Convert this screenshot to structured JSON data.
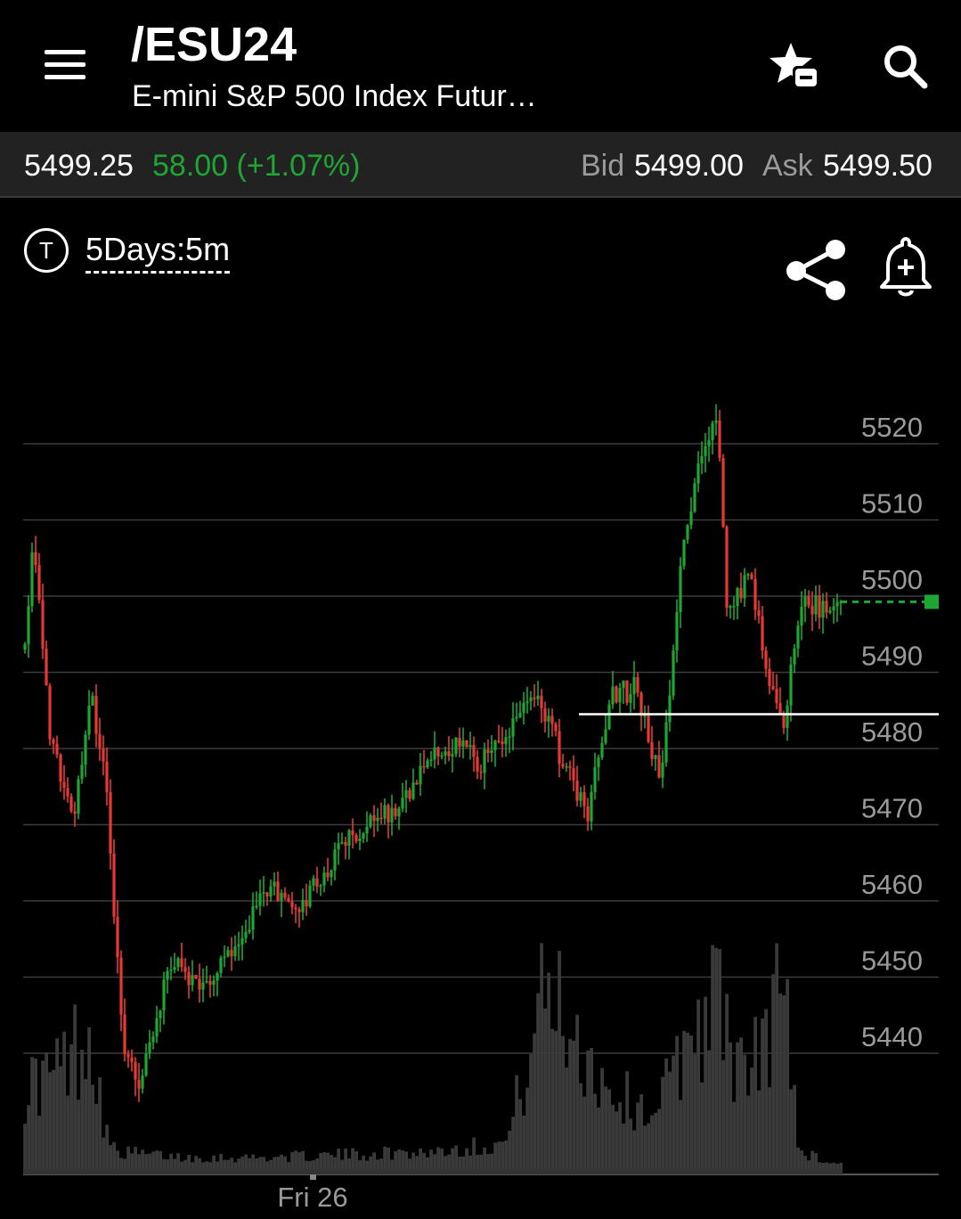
{
  "header": {
    "symbol": "/ESU24",
    "name": "E-mini S&P 500 Index Futur…",
    "icons": [
      "menu-icon",
      "watchlist-star-minus-icon",
      "search-icon"
    ]
  },
  "quote": {
    "last": "5499.25",
    "change": "58.00 (+1.07%)",
    "bid_label": "Bid",
    "bid": "5499.00",
    "ask_label": "Ask",
    "ask": "5499.50",
    "change_color": "#1fa533"
  },
  "chart_controls": {
    "timeframe_icon": "T",
    "timeframe": "5Days:5m",
    "icons": [
      "share-icon",
      "add-alert-bell-icon"
    ]
  },
  "chart_data": {
    "type": "candlestick",
    "price_ticks": [
      "5520",
      "5510",
      "5500",
      "5490",
      "5480",
      "5470",
      "5460",
      "5450",
      "5440"
    ],
    "x_label": "Fri 26",
    "ylim": [
      5434,
      5528
    ],
    "last_price": 5499.25,
    "reference_line": 5484.5,
    "up_color": "#1fa533",
    "down_color": "#e53935",
    "price_path": [
      [
        0,
        5493
      ],
      [
        1,
        5507
      ],
      [
        3,
        5483
      ],
      [
        6,
        5470
      ],
      [
        8,
        5488
      ],
      [
        10,
        5475
      ],
      [
        12,
        5440
      ],
      [
        14,
        5436
      ],
      [
        18,
        5452
      ],
      [
        22,
        5448
      ],
      [
        26,
        5455
      ],
      [
        30,
        5462
      ],
      [
        34,
        5459
      ],
      [
        38,
        5466
      ],
      [
        42,
        5470
      ],
      [
        46,
        5472
      ],
      [
        50,
        5479
      ],
      [
        53,
        5481
      ],
      [
        56,
        5478
      ],
      [
        60,
        5483
      ],
      [
        63,
        5487
      ],
      [
        66,
        5478
      ],
      [
        69,
        5472
      ],
      [
        72,
        5487
      ],
      [
        75,
        5488
      ],
      [
        78,
        5475
      ],
      [
        81,
        5510
      ],
      [
        83,
        5518
      ],
      [
        85,
        5523
      ],
      [
        86,
        5497
      ],
      [
        89,
        5503
      ],
      [
        91,
        5490
      ],
      [
        93,
        5483
      ],
      [
        95,
        5499
      ],
      [
        100,
        5498
      ]
    ],
    "volume_path": [
      [
        0,
        0.28
      ],
      [
        4,
        0.33
      ],
      [
        8,
        0.48
      ],
      [
        10,
        0.12
      ],
      [
        11,
        0.06
      ],
      [
        15,
        0.05
      ],
      [
        20,
        0.04
      ],
      [
        30,
        0.04
      ],
      [
        40,
        0.05
      ],
      [
        50,
        0.06
      ],
      [
        59,
        0.09
      ],
      [
        61,
        0.3
      ],
      [
        64,
        0.62
      ],
      [
        67,
        0.48
      ],
      [
        69,
        0.38
      ],
      [
        72,
        0.26
      ],
      [
        76,
        0.2
      ],
      [
        79,
        0.28
      ],
      [
        82,
        0.5
      ],
      [
        85,
        0.58
      ],
      [
        88,
        0.3
      ],
      [
        91,
        0.45
      ],
      [
        93,
        0.65
      ],
      [
        95,
        0.06
      ],
      [
        99,
        0.02
      ]
    ]
  }
}
